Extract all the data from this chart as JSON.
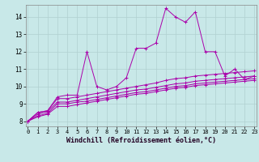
{
  "background_color": "#c8e8e8",
  "grid_color": "#b0d0d0",
  "line_color": "#aa00aa",
  "xlabel": "Windchill (Refroidissement éolien,°C)",
  "xlabel_fontsize": 6,
  "ytick_labels": [
    "8",
    "9",
    "10",
    "11",
    "12",
    "13",
    "14"
  ],
  "yticks": [
    8,
    9,
    10,
    11,
    12,
    13,
    14
  ],
  "xticks": [
    0,
    1,
    2,
    3,
    4,
    5,
    6,
    7,
    8,
    9,
    10,
    11,
    12,
    13,
    14,
    15,
    16,
    17,
    18,
    19,
    20,
    21,
    22,
    23
  ],
  "xlim": [
    -0.2,
    23.2
  ],
  "ylim": [
    7.7,
    14.7
  ],
  "series": [
    [
      8.0,
      8.5,
      8.6,
      9.4,
      9.5,
      9.5,
      12.0,
      10.0,
      9.8,
      10.0,
      10.5,
      12.2,
      12.2,
      12.5,
      14.5,
      14.0,
      13.7,
      14.3,
      12.0,
      12.0,
      10.6,
      11.0,
      10.4,
      10.6
    ],
    [
      8.0,
      8.5,
      8.6,
      9.3,
      9.3,
      9.4,
      9.5,
      9.6,
      9.7,
      9.8,
      9.9,
      10.0,
      10.1,
      10.2,
      10.35,
      10.45,
      10.5,
      10.6,
      10.65,
      10.7,
      10.75,
      10.8,
      10.85,
      10.9
    ],
    [
      8.0,
      8.4,
      8.55,
      9.1,
      9.1,
      9.2,
      9.3,
      9.4,
      9.5,
      9.6,
      9.7,
      9.8,
      9.85,
      9.95,
      10.05,
      10.15,
      10.2,
      10.3,
      10.35,
      10.4,
      10.45,
      10.5,
      10.55,
      10.6
    ],
    [
      8.0,
      8.3,
      8.45,
      9.0,
      9.0,
      9.1,
      9.15,
      9.25,
      9.35,
      9.45,
      9.55,
      9.65,
      9.7,
      9.8,
      9.9,
      10.0,
      10.05,
      10.15,
      10.2,
      10.25,
      10.3,
      10.35,
      10.4,
      10.45
    ],
    [
      8.0,
      8.25,
      8.4,
      8.85,
      8.85,
      8.95,
      9.05,
      9.15,
      9.25,
      9.35,
      9.45,
      9.55,
      9.6,
      9.7,
      9.8,
      9.9,
      9.95,
      10.05,
      10.1,
      10.15,
      10.2,
      10.25,
      10.3,
      10.35
    ]
  ]
}
